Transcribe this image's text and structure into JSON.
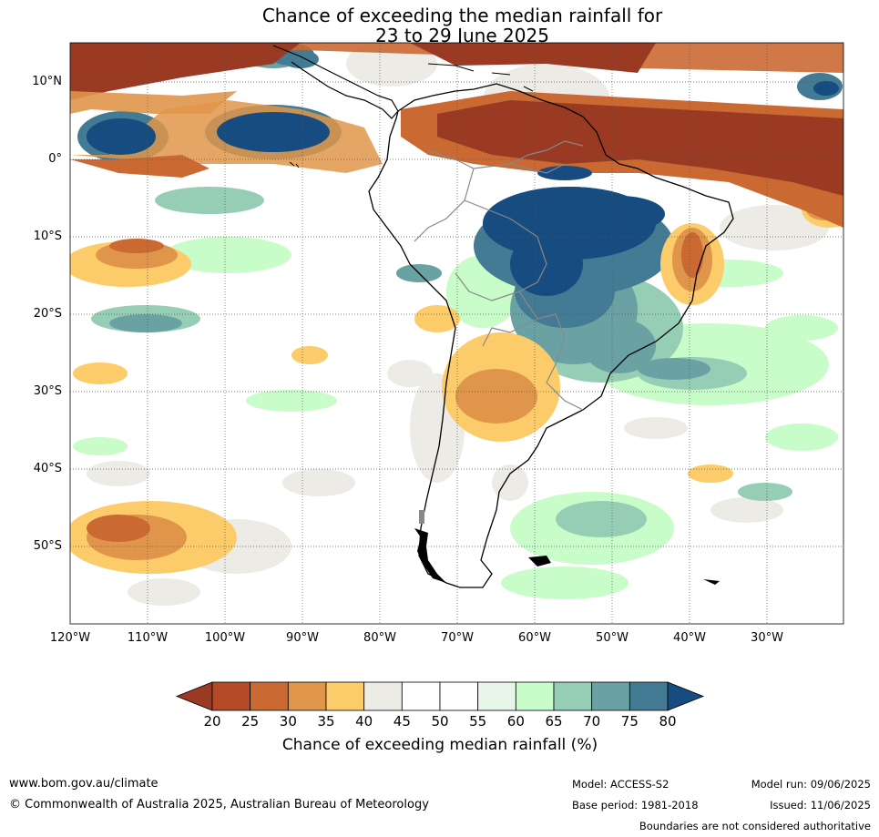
{
  "title": {
    "line1": "Chance of exceeding the median rainfall for",
    "line2": "23 to 29 June 2025"
  },
  "axes": {
    "lat_labels": [
      "10°N",
      "0°",
      "10°S",
      "20°S",
      "30°S",
      "40°S",
      "50°S"
    ],
    "lon_labels": [
      "120°W",
      "110°W",
      "100°W",
      "90°W",
      "80°W",
      "70°W",
      "60°W",
      "50°W",
      "40°W",
      "30°W"
    ]
  },
  "colorbar": {
    "ticks": [
      "20",
      "25",
      "30",
      "35",
      "40",
      "45",
      "50",
      "55",
      "60",
      "65",
      "70",
      "75",
      "80"
    ],
    "colors": [
      "#9b3a22",
      "#b54a28",
      "#cb6933",
      "#e0964a",
      "#fdcc6a",
      "#ecebe6",
      "#ffffff",
      "#ffffff",
      "#e8f5e9",
      "#c8fcc8",
      "#96cdb5",
      "#6aa2a4",
      "#447b94",
      "#174c80"
    ],
    "label": "Chance of exceeding median rainfall (%)"
  },
  "colors": {
    "very_dry": "#9b3a22",
    "dry": "#cb6933",
    "slightly_dry": "#fdcc6a",
    "near_median": "#ecebe6",
    "slightly_wet": "#c8fcc8",
    "wet": "#6aa2a4",
    "very_wet": "#174c80"
  },
  "footer": {
    "website": "www.bom.gov.au/climate",
    "copyright": "© Commonwealth of Australia 2025, Australian Bureau of Meteorology",
    "model": "Model: ACCESS-S2",
    "base_period": "Base period: 1981-2018",
    "model_run": "Model run: 09/06/2025",
    "issued": "Issued: 11/06/2025",
    "disclaimer": "Boundaries are not considered authoritative"
  }
}
